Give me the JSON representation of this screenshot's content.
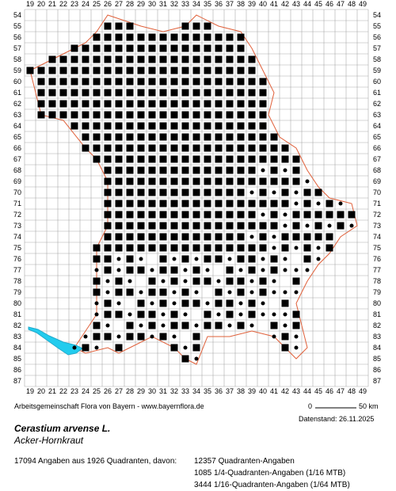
{
  "map": {
    "columns": [
      19,
      20,
      21,
      22,
      23,
      24,
      25,
      26,
      27,
      28,
      29,
      30,
      31,
      32,
      33,
      34,
      35,
      36,
      37,
      38,
      39,
      40,
      41,
      42,
      43,
      44,
      45,
      46,
      47,
      48,
      49
    ],
    "rows": [
      54,
      55,
      56,
      57,
      58,
      59,
      60,
      61,
      62,
      63,
      64,
      65,
      66,
      67,
      68,
      69,
      70,
      71,
      72,
      73,
      74,
      75,
      76,
      77,
      78,
      79,
      80,
      81,
      82,
      83,
      84,
      85,
      86,
      87
    ]
  },
  "footer": {
    "credit": "Arbeitsgemeinschaft Flora von Bayern - www.bayernflora.de",
    "scale_start": "0",
    "scale_end": "50 km",
    "date": "Datenstand: 26.11.2025"
  },
  "species": {
    "scientific": "Cerastium arvense L.",
    "common": "Acker-Hornkraut"
  },
  "stats": {
    "total": "17094 Angaben aus 1926 Quadranten, davon:",
    "lines": [
      "12357 Quadranten-Angaben",
      "1085 1/4-Quadranten-Angaben (1/16 MTB)",
      "3444 1/16-Quadranten-Angaben (1/64 MTB)"
    ]
  }
}
